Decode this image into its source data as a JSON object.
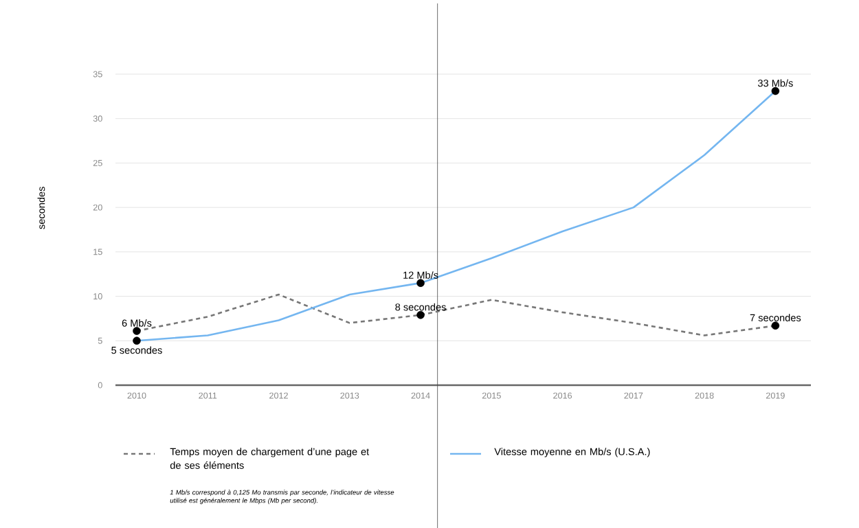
{
  "chart_data": {
    "type": "line",
    "ylabel": "secondes",
    "x": [
      2010,
      2011,
      2012,
      2013,
      2014,
      2015,
      2016,
      2017,
      2018,
      2019
    ],
    "series": [
      {
        "name": "Temps moyen de chargement d’une page et de ses éléments",
        "color": "#777777",
        "line_style": "dashed",
        "values": [
          6.1,
          7.7,
          10.2,
          7.0,
          7.9,
          9.6,
          8.2,
          7.0,
          5.6,
          6.7
        ],
        "value_labels": [
          "6 Mb/s",
          null,
          null,
          null,
          "8 secondes",
          null,
          null,
          null,
          null,
          "7 secondes"
        ]
      },
      {
        "name": "Vitesse moyenne en Mb/s (U.S.A.)",
        "color": "#74b6f0",
        "line_style": "solid",
        "values": [
          5.0,
          5.6,
          7.3,
          10.2,
          11.5,
          14.3,
          17.3,
          20.0,
          25.9,
          33.1
        ],
        "value_labels": [
          "5 secondes",
          null,
          null,
          null,
          "12 Mb/s",
          null,
          null,
          null,
          null,
          "33 Mb/s"
        ]
      }
    ],
    "xlim": [
      2009.7,
      2019.5
    ],
    "ylim": [
      0,
      35
    ],
    "xticks": [
      2010,
      2011,
      2012,
      2013,
      2014,
      2015,
      2016,
      2017,
      2018,
      2019
    ],
    "yticks": [
      0,
      5,
      10,
      15,
      20,
      25,
      30,
      35
    ],
    "grid": "y",
    "legend": "bottom",
    "ref_lines": [
      {
        "axis": "x",
        "value": 2014.24,
        "color": "#444444"
      }
    ],
    "annotations": [
      "*1 Mb/s correspond à 0,125 Mo transmis par seconde, l’indicateur de vitesse utilisé est généralement le Mbps (Mb per second).*"
    ]
  }
}
